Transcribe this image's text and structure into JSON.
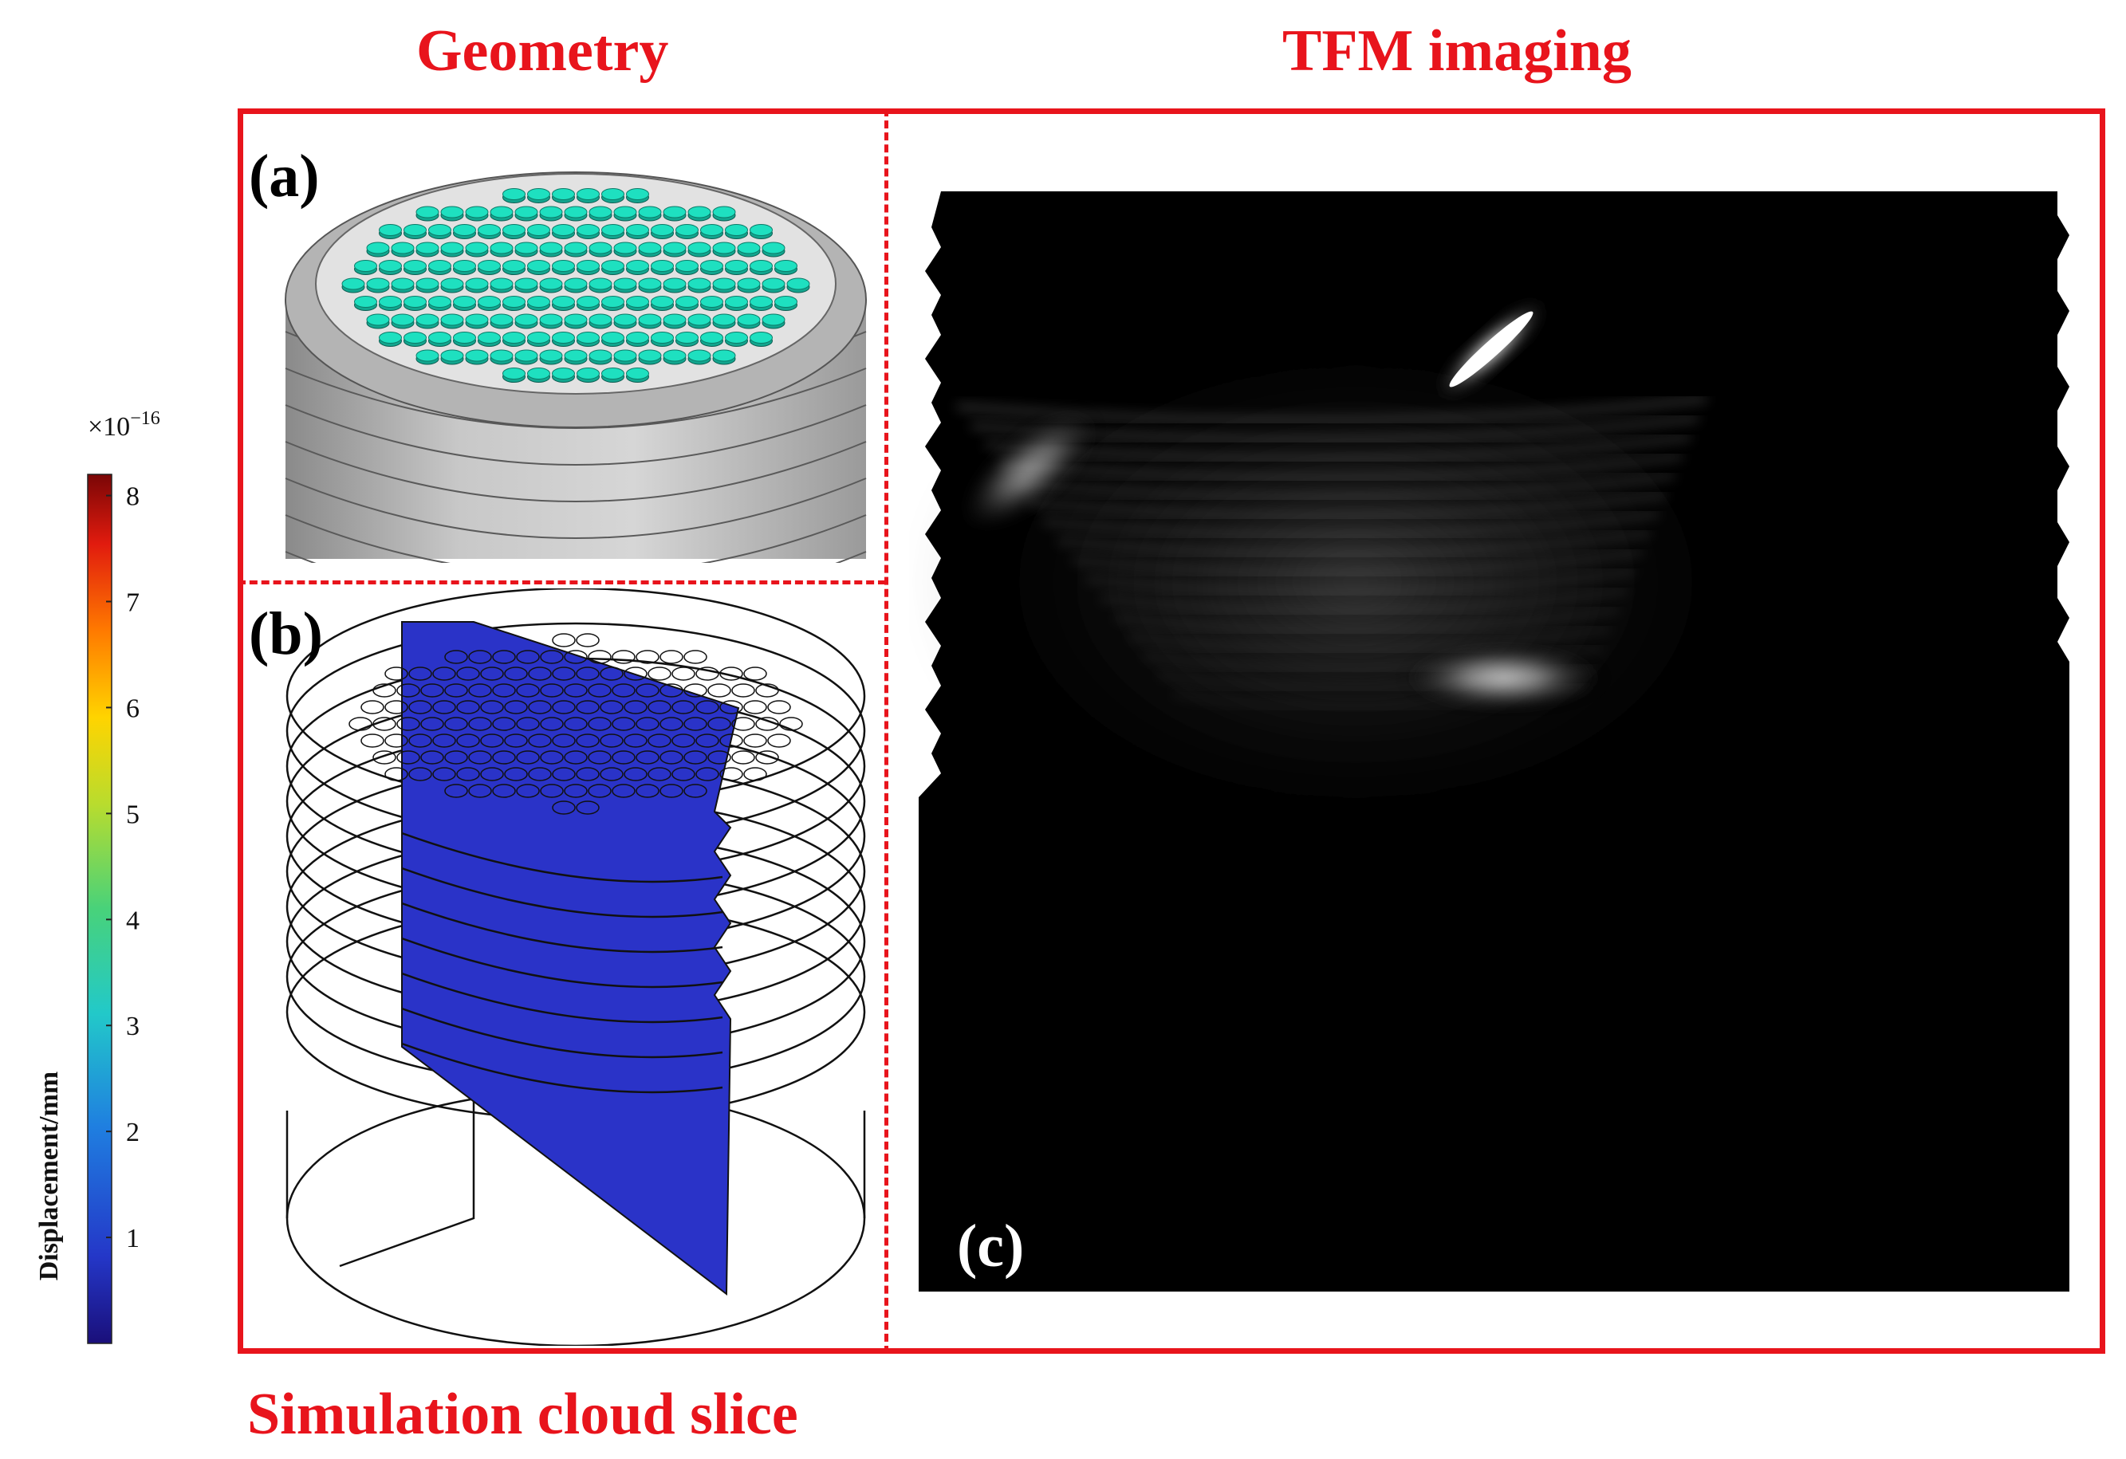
{
  "headings": {
    "geometry": "Geometry",
    "tfm": "TFM imaging",
    "simulation": "Simulation cloud slice"
  },
  "panels": {
    "a": "(a)",
    "b": "(b)",
    "c": "(c)"
  },
  "colorbar": {
    "label": "Displacement/mm",
    "exponent_base": "×10",
    "exponent_power": "−16",
    "ticks": [
      "1",
      "2",
      "3",
      "4",
      "5",
      "6",
      "7",
      "8"
    ],
    "max": 8.2,
    "colormap": [
      "#1a0f7a",
      "#2437c8",
      "#1f7fe0",
      "#22c9c9",
      "#48d27a",
      "#b8dc2e",
      "#ffd400",
      "#ff7a00",
      "#e11b0e",
      "#7a0606"
    ]
  },
  "colors": {
    "frame": "#e8141c",
    "tube": "#1ee0c0",
    "slice": "#2a33c8",
    "tfm_background": "#000000"
  }
}
